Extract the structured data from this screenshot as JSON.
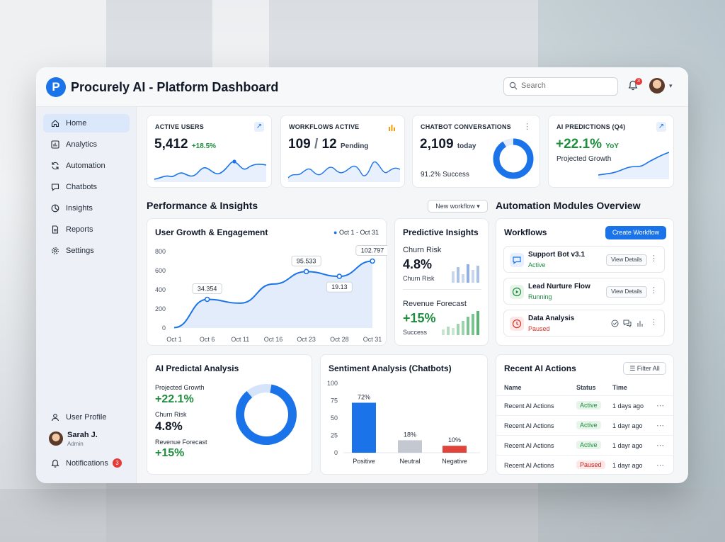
{
  "app": {
    "title": "Procurely AI - Platform Dashboard",
    "logo_letter": "P"
  },
  "header": {
    "search_placeholder": "Search",
    "notification_count": "3"
  },
  "sidebar": {
    "items": [
      {
        "label": "Home",
        "icon": "home-icon",
        "active": true
      },
      {
        "label": "Analytics",
        "icon": "analytics-icon"
      },
      {
        "label": "Automation",
        "icon": "automation-icon"
      },
      {
        "label": "Chatbots",
        "icon": "chat-icon"
      },
      {
        "label": "Insights",
        "icon": "pie-icon"
      },
      {
        "label": "Reports",
        "icon": "document-icon"
      },
      {
        "label": "Settings",
        "icon": "gear-icon"
      }
    ],
    "user_profile": "User Profile",
    "user_name": "Sarah J.",
    "user_role": "Admin",
    "notifications": "Notifications",
    "notifications_count": "3"
  },
  "kpis": [
    {
      "label": "ACTIVE USERS",
      "value": "5,412",
      "delta": "+18.5%"
    },
    {
      "label": "WORKFLOWS ACTIVE",
      "value": "109",
      "sep": "/",
      "value2": "12",
      "suffix": "Pending"
    },
    {
      "label": "CHATBOT CONVERSATIONS",
      "value": "2,109",
      "suffix": "today",
      "sub": "91.2% Success",
      "ring_fraction": 0.912
    },
    {
      "label": "AI PREDICTIONS (Q4)",
      "value": "+22.1%",
      "suffix": "YoY",
      "sub": "Projected Growth"
    }
  ],
  "performance": {
    "title": "Performance & Insights",
    "new_workflow": "New workflow",
    "growth_card": {
      "title": "User Growth & Engagement",
      "range": "Oct 1 - Oct 31"
    }
  },
  "chart_data": {
    "type": "line",
    "title": "User Growth & Engagement",
    "x": [
      "Oct 1",
      "Oct 6",
      "Oct 11",
      "Oct 16",
      "Oct 23",
      "Oct 28",
      "Oct 31"
    ],
    "y_ticks": [
      0,
      200,
      400,
      600,
      800
    ],
    "ylim": [
      0,
      800
    ],
    "series": [
      {
        "values": [
          5,
          300,
          260,
          460,
          590,
          540,
          700
        ]
      }
    ],
    "annotations": [
      {
        "x": "Oct 6",
        "label": "34.354"
      },
      {
        "x": "Oct 23",
        "label": "95.533"
      },
      {
        "x": "Oct 28",
        "label": "19.13"
      },
      {
        "x": "Oct 31",
        "label": "102.797"
      }
    ]
  },
  "predictive": {
    "title": "Predictive Insights",
    "churn_label": "Churn Risk",
    "churn_value": "4.8%",
    "churn_sub": "Churn Risk",
    "revenue_label": "Revenue Forecast",
    "revenue_value": "+15%",
    "revenue_sub": "Success"
  },
  "automation": {
    "title": "Automation Modules Overview",
    "workflows_title": "Workflows",
    "create_button": "Create Workflow",
    "items": [
      {
        "name": "Support Bot v3.1",
        "status": "Active",
        "action": "View Details"
      },
      {
        "name": "Lead Nurture Flow",
        "status": "Running",
        "action": "View Details"
      },
      {
        "name": "Data Analysis",
        "status": "Paused"
      }
    ]
  },
  "ai_analysis": {
    "title": "AI Predictal Analysis",
    "growth_label": "Projected Growth",
    "growth_value": "+22.1%",
    "churn_label": "Churn Risk",
    "churn_value": "4.8%",
    "revenue_label": "Revenue Forecast",
    "revenue_value": "+15%"
  },
  "sentiment": {
    "title": "Sentiment Analysis (Chatbots)",
    "y_ticks": [
      0,
      25,
      50,
      75,
      100
    ],
    "bars": [
      {
        "label": "Positive",
        "value": 72,
        "value_label": "72%",
        "color": "#1a73e8"
      },
      {
        "label": "Neutral",
        "value": 18,
        "value_label": "18%",
        "color": "#c4c9d1"
      },
      {
        "label": "Negative",
        "value": 10,
        "value_label": "10%",
        "color": "#e0443a"
      }
    ]
  },
  "recent": {
    "title": "Recent AI Actions",
    "filter": "Filter All",
    "columns": [
      "Name",
      "Status",
      "Time"
    ],
    "rows": [
      {
        "name": "Recent AI Actions",
        "status": "Active",
        "time": "1 days ago"
      },
      {
        "name": "Recent AI Actions",
        "status": "Active",
        "time": "1 dayr ago"
      },
      {
        "name": "Recent AI Actions",
        "status": "Active",
        "time": "1 dayr ago"
      },
      {
        "name": "Recent AI Actions",
        "status": "Paused",
        "time": "1 dayr ago"
      }
    ]
  },
  "colors": {
    "accent": "#1a73e8",
    "success": "#1e8e3e",
    "danger": "#d93025"
  }
}
